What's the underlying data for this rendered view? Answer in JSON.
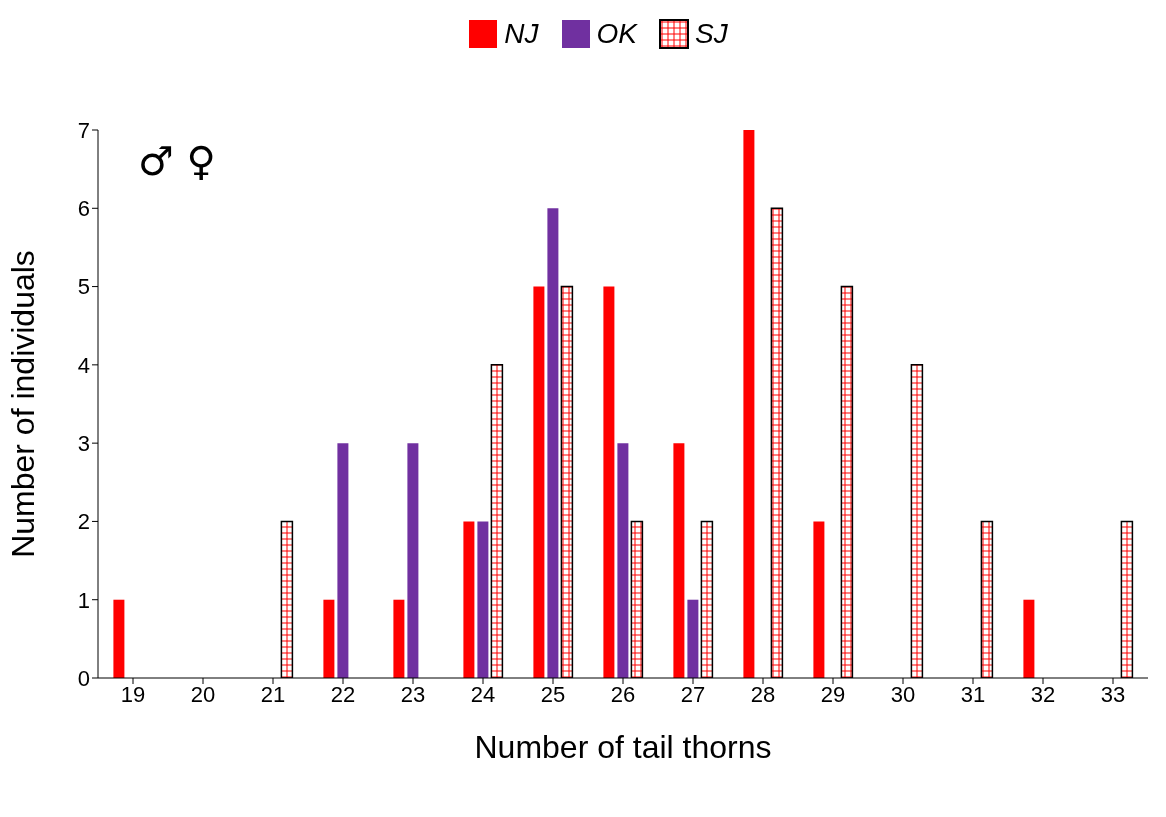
{
  "chart_data": {
    "type": "bar",
    "xlabel": "Number of tail thorns",
    "ylabel": "Number of individuals",
    "categories": [
      "19",
      "20",
      "21",
      "22",
      "23",
      "24",
      "25",
      "26",
      "27",
      "28",
      "29",
      "30",
      "31",
      "32",
      "33"
    ],
    "series": [
      {
        "name": "NJ",
        "color": "#ff0000",
        "values": [
          1,
          0,
          0,
          1,
          1,
          2,
          5,
          5,
          3,
          7,
          2,
          0,
          0,
          1,
          0
        ]
      },
      {
        "name": "OK",
        "color": "#7030a0",
        "values": [
          0,
          0,
          0,
          3,
          3,
          2,
          6,
          3,
          1,
          0,
          0,
          0,
          0,
          0,
          0
        ]
      },
      {
        "name": "SJ",
        "color": "#000000",
        "values": [
          0,
          0,
          2,
          0,
          0,
          4,
          5,
          2,
          2,
          6,
          5,
          4,
          2,
          0,
          2
        ]
      }
    ],
    "ylim": [
      0,
      7
    ],
    "yticks": [
      0,
      1,
      2,
      3,
      4,
      5,
      6,
      7
    ],
    "legend": "top",
    "annotations": [
      "♂ ♀"
    ]
  }
}
